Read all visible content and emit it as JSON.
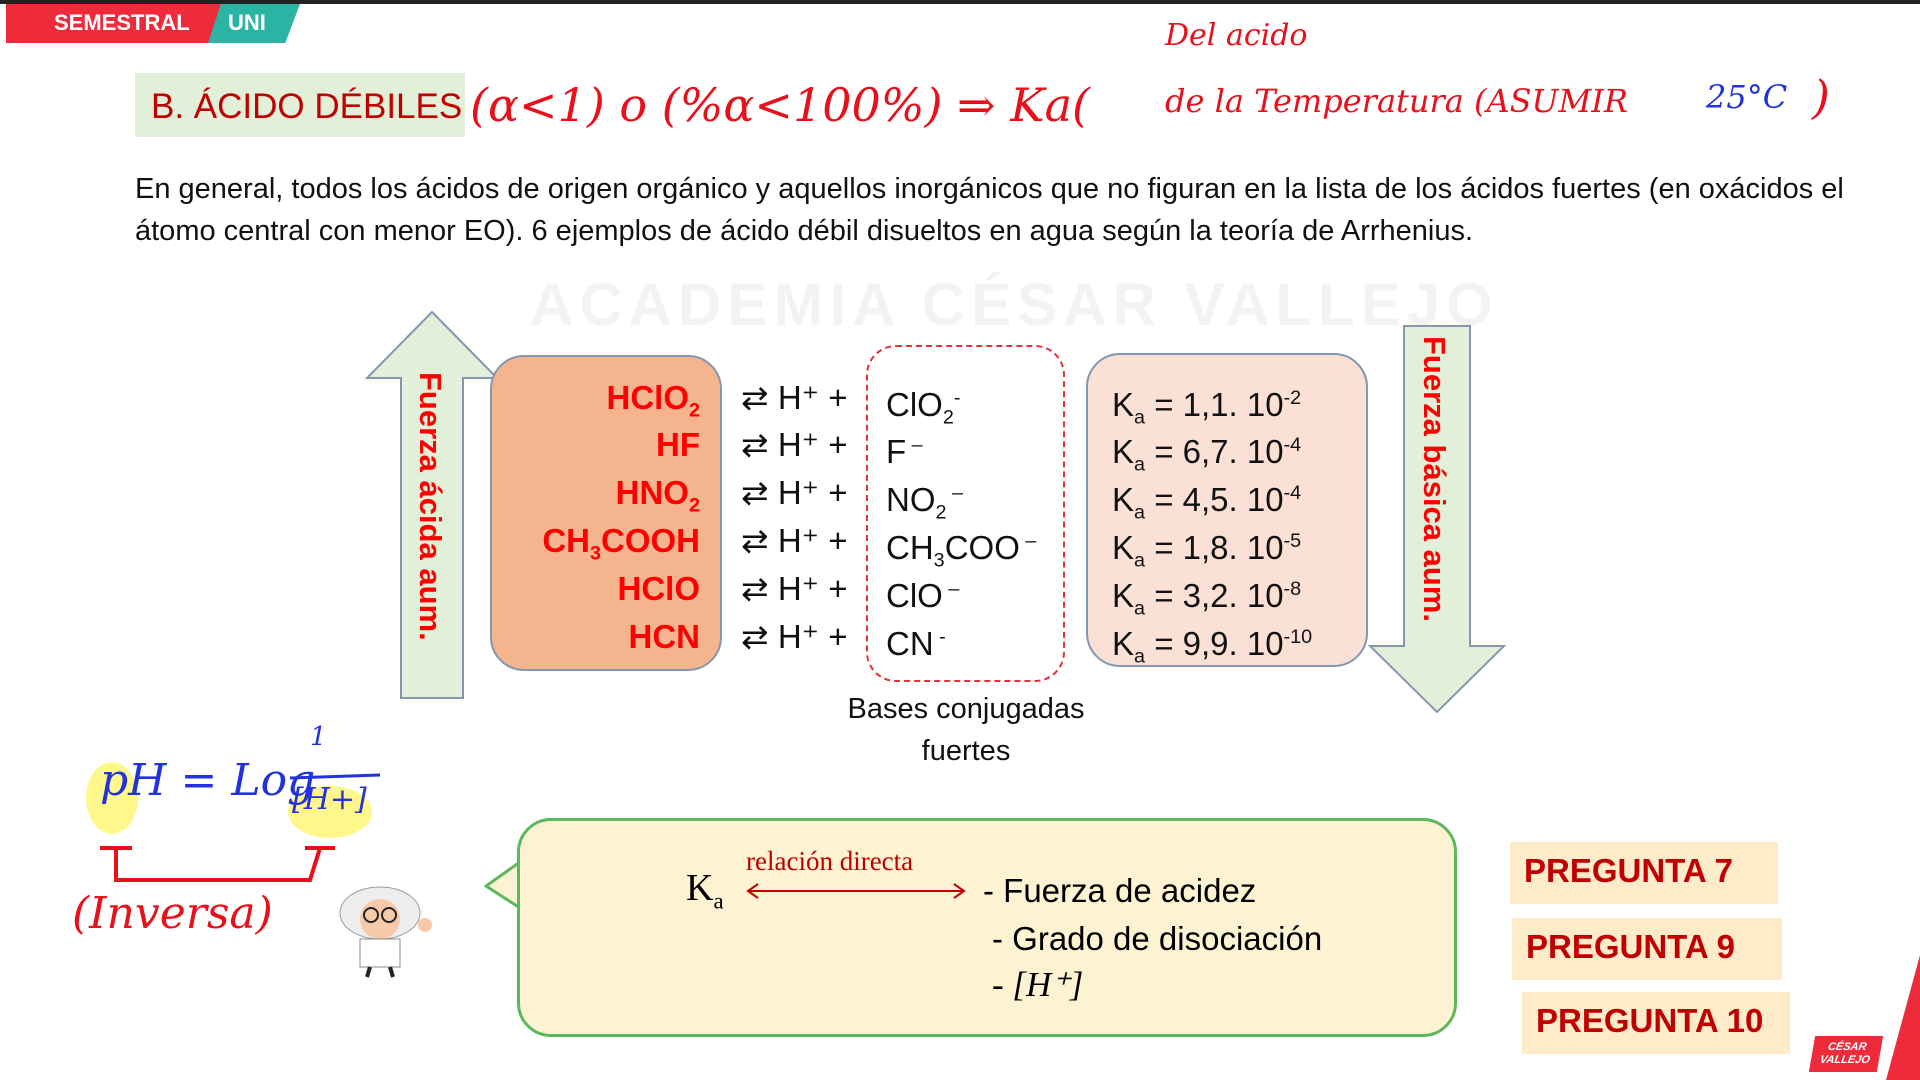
{
  "brand": {
    "left": "SEMESTRAL",
    "right": "UNI"
  },
  "title": "B.  ÁCIDO DÉBILES",
  "annotation": {
    "condition": "(α<1) o (%α<100%) ⇒ Ka(",
    "line1": "Del acido",
    "line2": "de la Temperatura (ASUMIR",
    "temp": "25°C",
    "close": ")"
  },
  "paragraph": "En general, todos los ácidos de origen orgánico y aquellos inorgánicos que no figuran en la lista de los ácidos fuertes (en oxácidos el átomo central con menor EO). 6 ejemplos de ácido débil disueltos en agua según la teoría de Arrhenius.",
  "watermark": "ACADEMIA CÉSAR VALLEJO",
  "arrows": {
    "up": "Fuerza ácida aum.",
    "down": "Fuerza  básica aum."
  },
  "equilibria": [
    {
      "acid": "HClO",
      "acid_sub": "2",
      "eq": "⇄ H⁺  +",
      "base": "ClO",
      "base_sub": "2",
      "base_sup": "-",
      "ka": "1,1. 10",
      "ka_exp": "-2"
    },
    {
      "acid": "HF",
      "acid_sub": "",
      "eq": "⇄ H⁺  +",
      "base": "F",
      "base_sub": "",
      "base_sup": " –",
      "ka": "6,7. 10",
      "ka_exp": "-4"
    },
    {
      "acid": "HNO",
      "acid_sub": "2",
      "eq": "⇄ H⁺  +",
      "base": "NO",
      "base_sub": "2",
      "base_sup": " –",
      "ka": "4,5. 10",
      "ka_exp": "-4"
    },
    {
      "acid": "CH",
      "acid_sub": "3",
      "acid_tail": "COOH",
      "eq": "⇄ H⁺  +",
      "base": "CH",
      "base_sub": "3",
      "base_tail": "COO",
      "base_sup": " –",
      "ka": "1,8. 10",
      "ka_exp": "-5"
    },
    {
      "acid": "HClO",
      "acid_sub": "",
      "eq": "⇄ H⁺  +",
      "base": "ClO",
      "base_sub": "",
      "base_sup": " –",
      "ka": "3,2. 10",
      "ka_exp": "-8"
    },
    {
      "acid": "HCN",
      "acid_sub": "",
      "eq": "⇄ H⁺  +",
      "base": "CN",
      "base_sub": "",
      "base_sup": " -",
      "ka": "9,9. 10",
      "ka_exp": "-10"
    }
  ],
  "ka_label": "K",
  "ka_sub": "a",
  "bases_caption": {
    "line1": "Bases conjugadas",
    "line2": "fuertes"
  },
  "ph_note": {
    "formula": "pH = Log",
    "num": "1",
    "den": "[H+]",
    "relation": "(Inversa)"
  },
  "callout": {
    "ka": "K",
    "ka_sub": "a",
    "relation": "relación directa",
    "items": [
      "- Fuerza de acidez",
      "- Grado de disociación",
      "- [H⁺]"
    ]
  },
  "questions": [
    "PREGUNTA 7",
    "PREGUNTA 9",
    "PREGUNTA 10"
  ],
  "logo": "CÉSAR VALLEJO",
  "colors": {
    "red": "#ff0000",
    "title_red": "#c00000",
    "green_box": "#e2efd9",
    "orange": "#f4b48e",
    "pink": "#fbe0d6",
    "callout": "#fdf3d3"
  }
}
